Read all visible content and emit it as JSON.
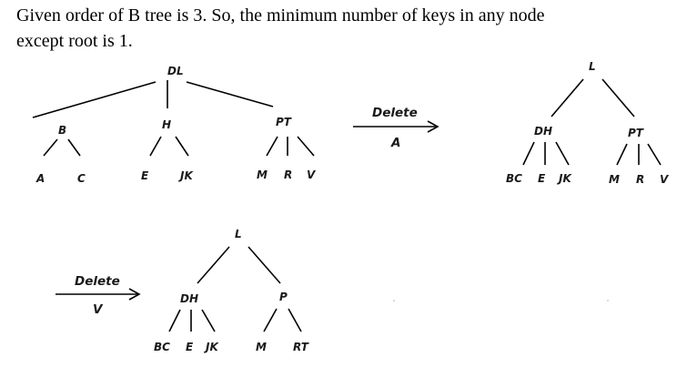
{
  "intro": {
    "line1": "Given order of B tree is 3. So, the minimum number of keys in any node",
    "line2": "except root is 1."
  },
  "tree1": {
    "root": "DL",
    "left": "B",
    "middle": "H",
    "right": "PT",
    "leaf_a": "A",
    "leaf_c": "C",
    "leaf_e": "E",
    "leaf_jk": "JK",
    "leaf_m": "M",
    "leaf_r": "R",
    "leaf_v": "V"
  },
  "op1": {
    "action": "Delete",
    "key": "A"
  },
  "tree2": {
    "root": "L",
    "left": "DH",
    "right": "PT",
    "leaf_bc": "BC",
    "leaf_e": "E",
    "leaf_jk": "JK",
    "leaf_m": "M",
    "leaf_r": "R",
    "leaf_v": "V"
  },
  "op2": {
    "action": "Delete",
    "key": "V"
  },
  "tree3": {
    "root": "L",
    "left": "DH",
    "right": "P",
    "leaf_bc": "BC",
    "leaf_e": "E",
    "leaf_jk": "JK",
    "leaf_m": "M",
    "leaf_rt": "RT"
  }
}
